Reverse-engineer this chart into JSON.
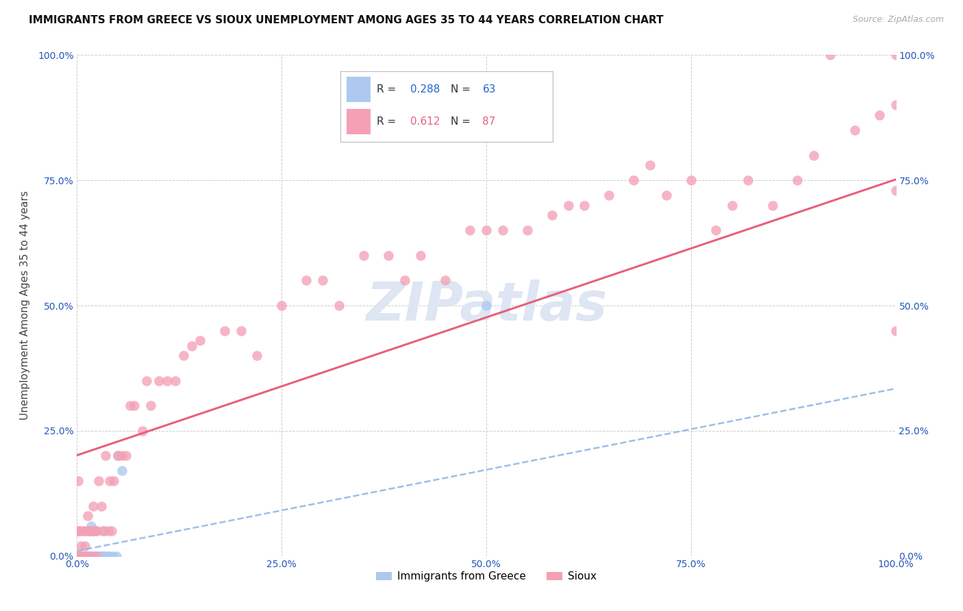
{
  "title": "IMMIGRANTS FROM GREECE VS SIOUX UNEMPLOYMENT AMONG AGES 35 TO 44 YEARS CORRELATION CHART",
  "source": "Source: ZipAtlas.com",
  "ylabel": "Unemployment Among Ages 35 to 44 years",
  "xlim": [
    0.0,
    1.0
  ],
  "ylim": [
    0.0,
    1.0
  ],
  "xtick_vals": [
    0.0,
    0.25,
    0.5,
    0.75,
    1.0
  ],
  "ytick_vals": [
    0.0,
    0.25,
    0.5,
    0.75,
    1.0
  ],
  "xticklabels": [
    "0.0%",
    "25.0%",
    "50.0%",
    "75.0%",
    "100.0%"
  ],
  "yticklabels": [
    "0.0%",
    "25.0%",
    "50.0%",
    "75.0%",
    "100.0%"
  ],
  "greece_scatter_color": "#adc9f0",
  "sioux_scatter_color": "#f4a0b5",
  "greece_line_color": "#90b8e8",
  "sioux_line_color": "#e8607a",
  "greece_r": 0.288,
  "greece_n": 63,
  "sioux_r": 0.612,
  "sioux_n": 87,
  "tick_color": "#2255bb",
  "watermark_text": "ZIPatlas",
  "watermark_color": "#dde6f2",
  "bottom_legend_greece": "Immigrants from Greece",
  "bottom_legend_sioux": "Sioux",
  "title_fontsize": 11,
  "source_fontsize": 9,
  "tick_fontsize": 10,
  "ylabel_fontsize": 11,
  "legend_fontsize": 11,
  "greece_scatter_x": [
    0.0,
    0.0,
    0.0,
    0.0,
    0.0,
    0.0,
    0.0,
    0.0,
    0.0,
    0.0,
    0.001,
    0.001,
    0.001,
    0.001,
    0.001,
    0.002,
    0.002,
    0.002,
    0.002,
    0.003,
    0.003,
    0.003,
    0.004,
    0.004,
    0.005,
    0.005,
    0.006,
    0.006,
    0.007,
    0.008,
    0.008,
    0.009,
    0.01,
    0.01,
    0.011,
    0.012,
    0.013,
    0.015,
    0.015,
    0.016,
    0.017,
    0.018,
    0.019,
    0.02,
    0.021,
    0.022,
    0.025,
    0.026,
    0.027,
    0.028,
    0.03,
    0.031,
    0.032,
    0.033,
    0.034,
    0.035,
    0.038,
    0.04,
    0.044,
    0.048,
    0.05,
    0.055,
    0.5
  ],
  "greece_scatter_y": [
    0.0,
    0.0,
    0.0,
    0.0,
    0.0,
    0.0,
    0.0,
    0.0,
    0.0,
    0.0,
    0.0,
    0.0,
    0.0,
    0.0,
    0.0,
    0.0,
    0.0,
    0.0,
    0.0,
    0.0,
    0.0,
    0.0,
    0.0,
    0.0,
    0.0,
    0.0,
    0.0,
    0.0,
    0.0,
    0.0,
    0.0,
    0.0,
    0.0,
    0.0,
    0.0,
    0.0,
    0.0,
    0.0,
    0.0,
    0.05,
    0.06,
    0.0,
    0.0,
    0.05,
    0.0,
    0.0,
    0.0,
    0.0,
    0.0,
    0.0,
    0.0,
    0.0,
    0.05,
    0.0,
    0.0,
    0.0,
    0.0,
    0.0,
    0.0,
    0.0,
    0.2,
    0.17,
    0.5
  ],
  "sioux_scatter_x": [
    0.0,
    0.0,
    0.0,
    0.001,
    0.001,
    0.002,
    0.002,
    0.003,
    0.004,
    0.005,
    0.006,
    0.007,
    0.008,
    0.009,
    0.01,
    0.011,
    0.012,
    0.013,
    0.014,
    0.015,
    0.016,
    0.017,
    0.018,
    0.02,
    0.021,
    0.022,
    0.023,
    0.025,
    0.026,
    0.03,
    0.032,
    0.035,
    0.038,
    0.04,
    0.042,
    0.045,
    0.05,
    0.055,
    0.06,
    0.065,
    0.07,
    0.08,
    0.085,
    0.09,
    0.1,
    0.11,
    0.12,
    0.13,
    0.14,
    0.15,
    0.18,
    0.2,
    0.22,
    0.25,
    0.28,
    0.3,
    0.32,
    0.35,
    0.38,
    0.4,
    0.42,
    0.45,
    0.48,
    0.5,
    0.52,
    0.55,
    0.58,
    0.6,
    0.62,
    0.65,
    0.68,
    0.7,
    0.72,
    0.75,
    0.78,
    0.8,
    0.82,
    0.85,
    0.88,
    0.9,
    0.92,
    0.95,
    0.98,
    1.0,
    1.0,
    1.0,
    1.0
  ],
  "sioux_scatter_y": [
    0.0,
    0.0,
    0.05,
    0.0,
    0.15,
    0.0,
    0.05,
    0.05,
    0.0,
    0.02,
    0.0,
    0.05,
    0.0,
    0.05,
    0.02,
    0.0,
    0.05,
    0.08,
    0.05,
    0.05,
    0.05,
    0.05,
    0.0,
    0.1,
    0.05,
    0.05,
    0.0,
    0.05,
    0.15,
    0.1,
    0.05,
    0.2,
    0.05,
    0.15,
    0.05,
    0.15,
    0.2,
    0.2,
    0.2,
    0.3,
    0.3,
    0.25,
    0.35,
    0.3,
    0.35,
    0.35,
    0.35,
    0.4,
    0.42,
    0.43,
    0.45,
    0.45,
    0.4,
    0.5,
    0.55,
    0.55,
    0.5,
    0.6,
    0.6,
    0.55,
    0.6,
    0.55,
    0.65,
    0.65,
    0.65,
    0.65,
    0.68,
    0.7,
    0.7,
    0.72,
    0.75,
    0.78,
    0.72,
    0.75,
    0.65,
    0.7,
    0.75,
    0.7,
    0.75,
    0.8,
    1.0,
    0.85,
    0.88,
    0.9,
    0.45,
    0.73,
    1.0
  ]
}
